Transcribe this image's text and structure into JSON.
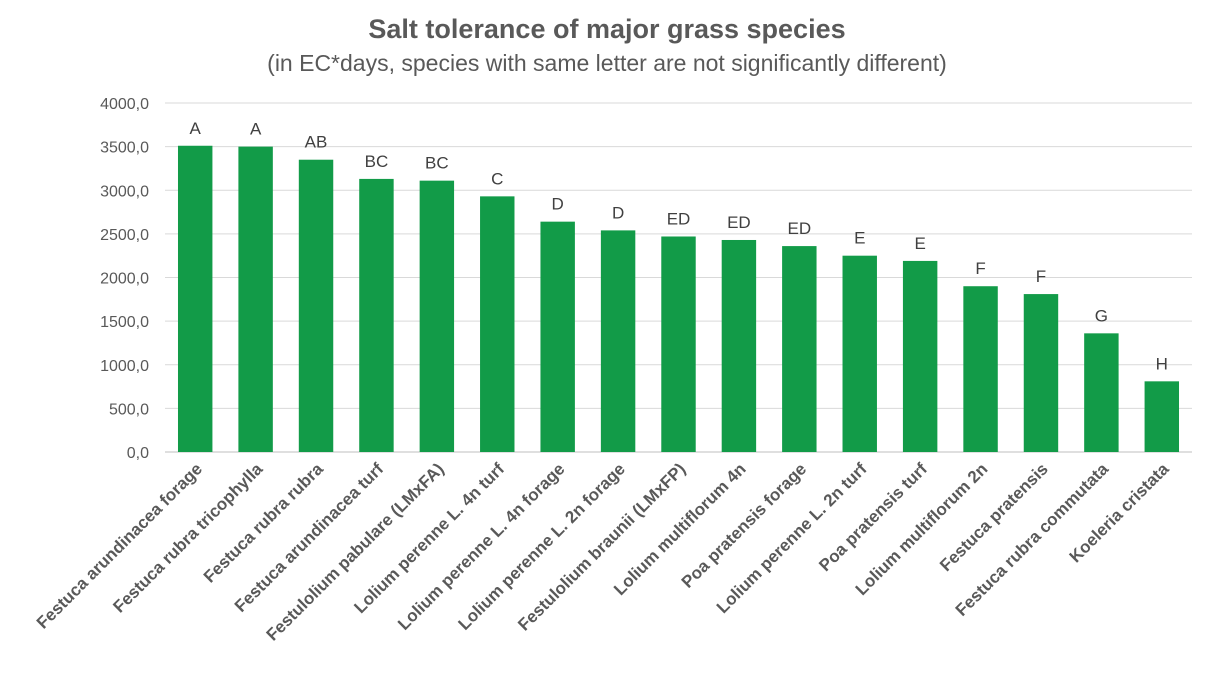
{
  "chart_data": {
    "type": "bar",
    "title": "Salt tolerance of major grass species",
    "subtitle": "(in EC*days, species with same letter are not significantly different)",
    "xlabel": "",
    "ylabel": "",
    "ylim": [
      0,
      4000
    ],
    "yticks": [
      "0,0",
      "500,0",
      "1000,0",
      "1500,0",
      "2000,0",
      "2500,0",
      "3000,0",
      "3500,0",
      "4000,0"
    ],
    "grid": true,
    "bar_color": "#129B48",
    "categories": [
      "Festuca arundinacea forage",
      "Festuca rubra tricophylla",
      "Festuca rubra rubra",
      "Festuca arundinacea turf",
      "Festulolium pabulare (LMxFA)",
      "Lolium perenne L. 4n turf",
      "Lolium perenne L. 4n forage",
      "Lolium perenne L. 2n forage",
      "Festulolium braunii (LMxFP)",
      "Lolium multiflorum 4n",
      "Poa pratensis forage",
      "Lolium perenne L. 2n turf",
      "Poa pratensis turf",
      "Lolium multiflorum 2n",
      "Festuca pratensis",
      "Festuca rubra commutata",
      "Koeleria cristata"
    ],
    "values": [
      3510,
      3500,
      3350,
      3130,
      3110,
      2930,
      2640,
      2540,
      2470,
      2430,
      2360,
      2250,
      2190,
      1900,
      1810,
      1360,
      810
    ],
    "bar_labels": [
      "A",
      "A",
      "AB",
      "BC",
      "BC",
      "C",
      "D",
      "D",
      "ED",
      "ED",
      "ED",
      "E",
      "E",
      "F",
      "F",
      "G",
      "H"
    ]
  }
}
